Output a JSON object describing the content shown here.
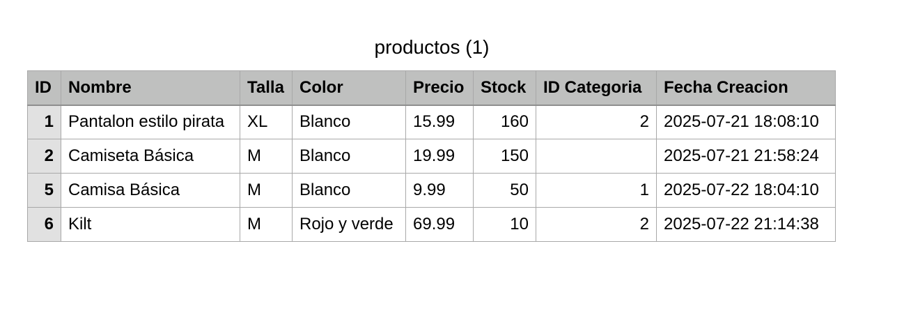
{
  "title": "productos (1)",
  "table": {
    "headers": [
      "ID",
      "Nombre",
      "Talla",
      "Color",
      "Precio",
      "Stock",
      "ID Categoria",
      "Fecha Creacion"
    ],
    "rows": [
      [
        "1",
        "Pantalon estilo pirata",
        "XL",
        "Blanco",
        "15.99",
        "160",
        "2",
        "2025-07-21 18:08:10"
      ],
      [
        "2",
        "Camiseta Básica",
        "M",
        "Blanco",
        "19.99",
        "150",
        "",
        "2025-07-21 21:58:24"
      ],
      [
        "5",
        "Camisa Básica",
        "M",
        "Blanco",
        "9.99",
        "50",
        "1",
        "2025-07-22 18:04:10"
      ],
      [
        "6",
        "Kilt",
        "M",
        "Rojo y verde",
        "69.99",
        "10",
        "2",
        "2025-07-22 21:14:38"
      ]
    ]
  },
  "colors": {
    "header_bg": "#bfc0bf",
    "rowhead_bg": "#e1e1e1",
    "border": "#a8a8a8"
  }
}
